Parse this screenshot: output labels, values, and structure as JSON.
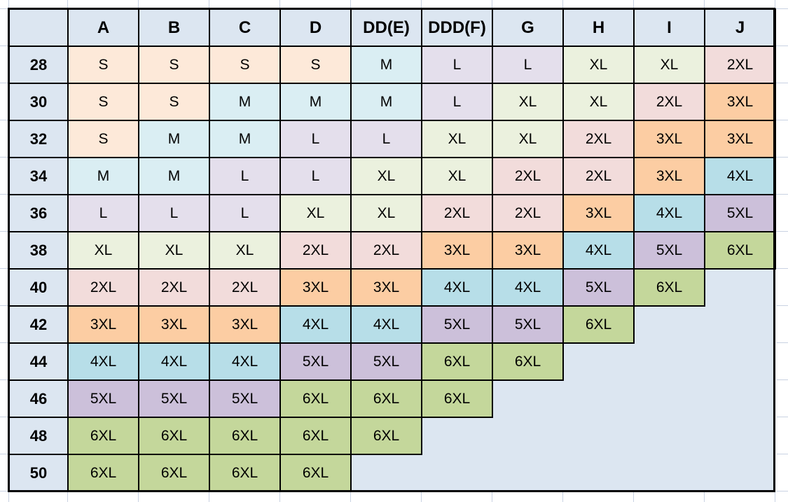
{
  "chart_data": {
    "type": "table",
    "corner_label": "",
    "columns": [
      "A",
      "B",
      "C",
      "D",
      "DD(E)",
      "DDD(F)",
      "G",
      "H",
      "I",
      "J"
    ],
    "rows": [
      "28",
      "30",
      "32",
      "34",
      "36",
      "38",
      "40",
      "42",
      "44",
      "46",
      "48",
      "50"
    ],
    "cells": [
      [
        "S",
        "S",
        "S",
        "S",
        "M",
        "L",
        "L",
        "XL",
        "XL",
        "2XL"
      ],
      [
        "S",
        "S",
        "M",
        "M",
        "M",
        "L",
        "XL",
        "XL",
        "2XL",
        "3XL"
      ],
      [
        "S",
        "M",
        "M",
        "L",
        "L",
        "XL",
        "XL",
        "2XL",
        "3XL",
        "3XL"
      ],
      [
        "M",
        "M",
        "L",
        "L",
        "XL",
        "XL",
        "2XL",
        "2XL",
        "3XL",
        "4XL"
      ],
      [
        "L",
        "L",
        "L",
        "XL",
        "XL",
        "2XL",
        "2XL",
        "3XL",
        "4XL",
        "5XL"
      ],
      [
        "XL",
        "XL",
        "XL",
        "2XL",
        "2XL",
        "3XL",
        "3XL",
        "4XL",
        "5XL",
        "6XL"
      ],
      [
        "2XL",
        "2XL",
        "2XL",
        "3XL",
        "3XL",
        "4XL",
        "4XL",
        "5XL",
        "6XL",
        ""
      ],
      [
        "3XL",
        "3XL",
        "3XL",
        "4XL",
        "4XL",
        "5XL",
        "5XL",
        "6XL",
        "",
        ""
      ],
      [
        "4XL",
        "4XL",
        "4XL",
        "5XL",
        "5XL",
        "6XL",
        "6XL",
        "",
        "",
        ""
      ],
      [
        "5XL",
        "5XL",
        "5XL",
        "6XL",
        "6XL",
        "6XL",
        "",
        "",
        "",
        ""
      ],
      [
        "6XL",
        "6XL",
        "6XL",
        "6XL",
        "6XL",
        "",
        "",
        "",
        "",
        ""
      ],
      [
        "6XL",
        "6XL",
        "6XL",
        "6XL",
        "",
        "",
        "",
        "",
        "",
        ""
      ]
    ]
  },
  "size_colors": {
    "S": "#FDE9D9",
    "M": "#DAEEF3",
    "L": "#E4DFEC",
    "XL": "#EBF1DE",
    "2XL": "#F2DCDB",
    "3XL": "#FCCDA3",
    "4XL": "#B7DEE8",
    "5XL": "#CCC0DA",
    "6XL": "#C4D79B"
  },
  "colors": {
    "header_bg": "#DCE6F1",
    "row_label_bg": "#DCE6F1",
    "empty_cell_bg": "#DCE6F1",
    "cell_border": "#000000",
    "text": "#000000",
    "sheet_bg": "#FFFFFF",
    "gridline": "#C9D2E2"
  }
}
